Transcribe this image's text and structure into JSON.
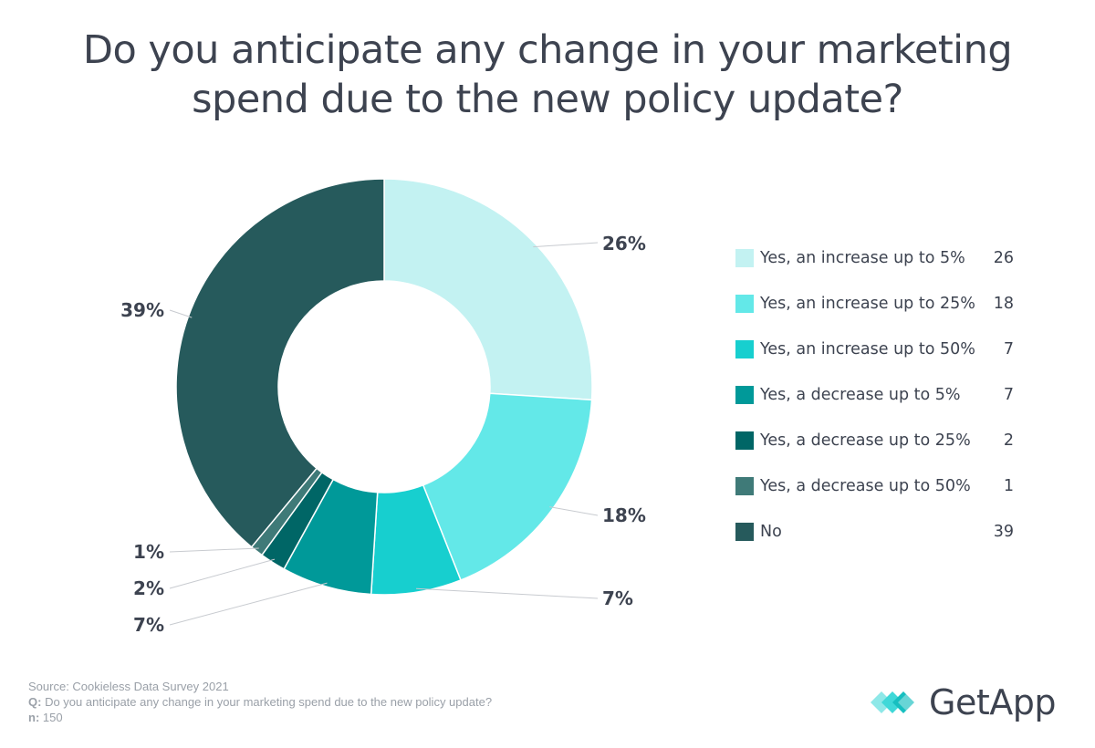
{
  "title": {
    "line1": "Do you anticipate any change in your marketing",
    "line2": "spend due to the new policy update?"
  },
  "chart_data": {
    "type": "pie",
    "variant": "donut",
    "legend_position": "right",
    "slices": [
      {
        "label": "Yes, an increase up to 5%",
        "value": 26,
        "percent_label": "26%",
        "color": "#c3f2f2"
      },
      {
        "label": "Yes, an increase up to 25%",
        "value": 18,
        "percent_label": "18%",
        "color": "#63e8e8"
      },
      {
        "label": "Yes, an increase up to 50%",
        "value": 7,
        "percent_label": "7%",
        "color": "#17cfcf"
      },
      {
        "label": "Yes, a decrease up to 5%",
        "value": 7,
        "percent_label": "7%",
        "color": "#009999"
      },
      {
        "label": "Yes, a decrease up to 25%",
        "value": 2,
        "percent_label": "2%",
        "color": "#006666"
      },
      {
        "label": "Yes, a decrease up to 50%",
        "value": 1,
        "percent_label": "1%",
        "color": "#3f7a78"
      },
      {
        "label": "No",
        "value": 39,
        "percent_label": "39%",
        "color": "#265a5c"
      }
    ]
  },
  "footer": {
    "source": "Source: Cookieless Data Survey 2021",
    "q_label": "Q:",
    "question": " Do you anticipate any change in your marketing spend due to the new policy update?",
    "n_label": "n:",
    "n_value": " 150"
  },
  "logo": {
    "text": "GetApp",
    "icon": "getapp-chevrons-icon"
  }
}
